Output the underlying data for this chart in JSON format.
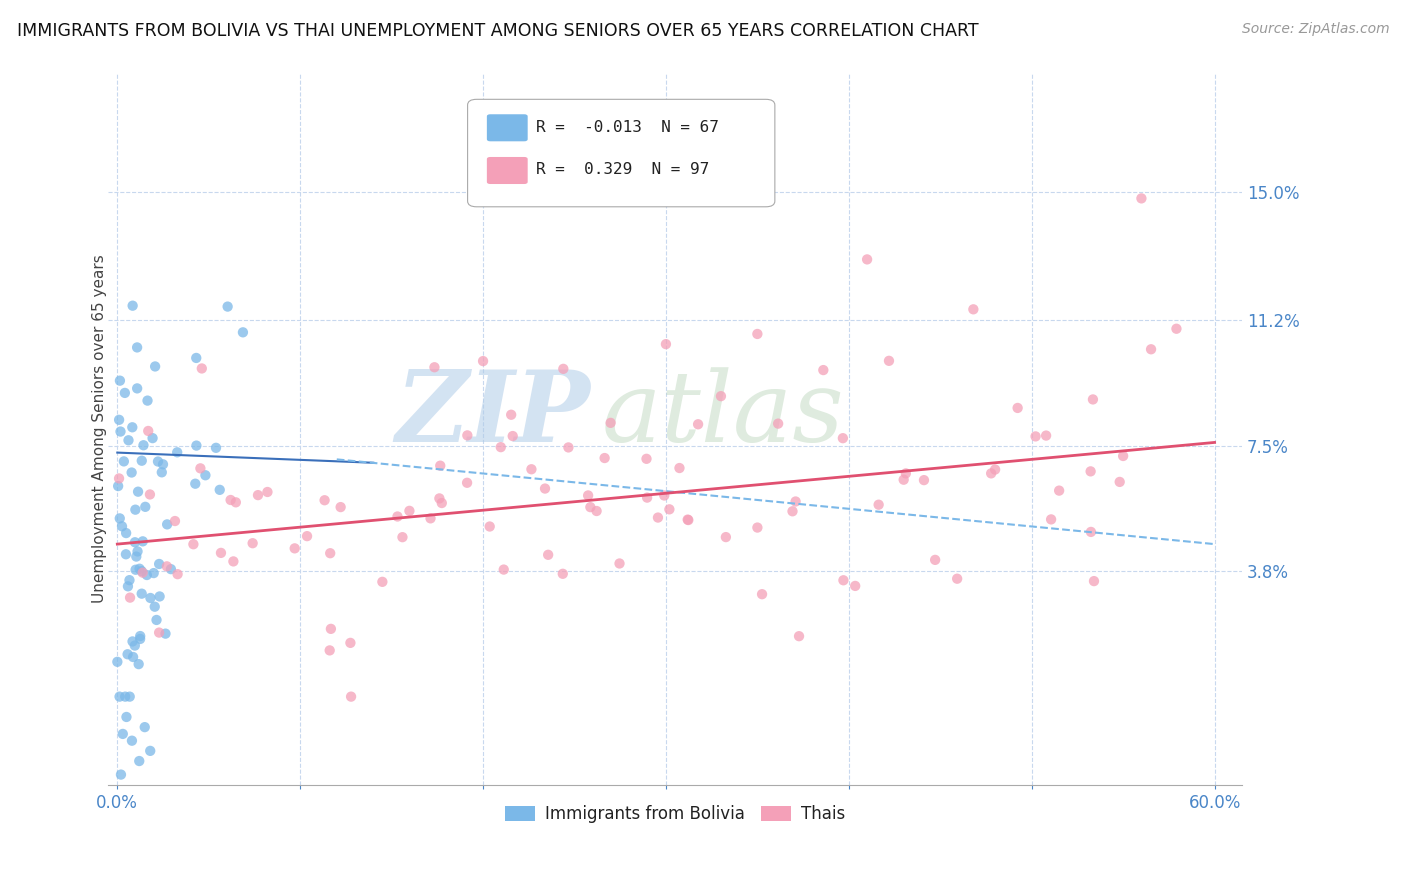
{
  "title": "IMMIGRANTS FROM BOLIVIA VS THAI UNEMPLOYMENT AMONG SENIORS OVER 65 YEARS CORRELATION CHART",
  "source": "Source: ZipAtlas.com",
  "ylabel": "Unemployment Among Seniors over 65 years",
  "xlim": [
    -0.005,
    0.615
  ],
  "ylim": [
    -0.025,
    0.185
  ],
  "yticks": [
    0.038,
    0.075,
    0.112,
    0.15
  ],
  "ytick_labels": [
    "3.8%",
    "7.5%",
    "11.2%",
    "15.0%"
  ],
  "xticks": [
    0.0,
    0.1,
    0.2,
    0.3,
    0.4,
    0.5,
    0.6
  ],
  "xtick_labels": [
    "0.0%",
    "",
    "",
    "",
    "",
    "",
    "60.0%"
  ],
  "blue_color": "#7bb8e8",
  "pink_color": "#f4a0b8",
  "blue_line_color": "#3a6fba",
  "pink_line_color": "#e05070",
  "blue_R": -0.013,
  "blue_N": 67,
  "pink_R": 0.329,
  "pink_N": 97,
  "legend_label_blue": "Immigrants from Bolivia",
  "legend_label_pink": "Thais",
  "blue_trend_x0": 0.0,
  "blue_trend_y0": 0.073,
  "blue_trend_x1": 0.6,
  "blue_trend_y1": 0.046,
  "pink_trend_x0": 0.0,
  "pink_trend_y0": 0.046,
  "pink_trend_x1": 0.6,
  "pink_trend_y1": 0.076
}
